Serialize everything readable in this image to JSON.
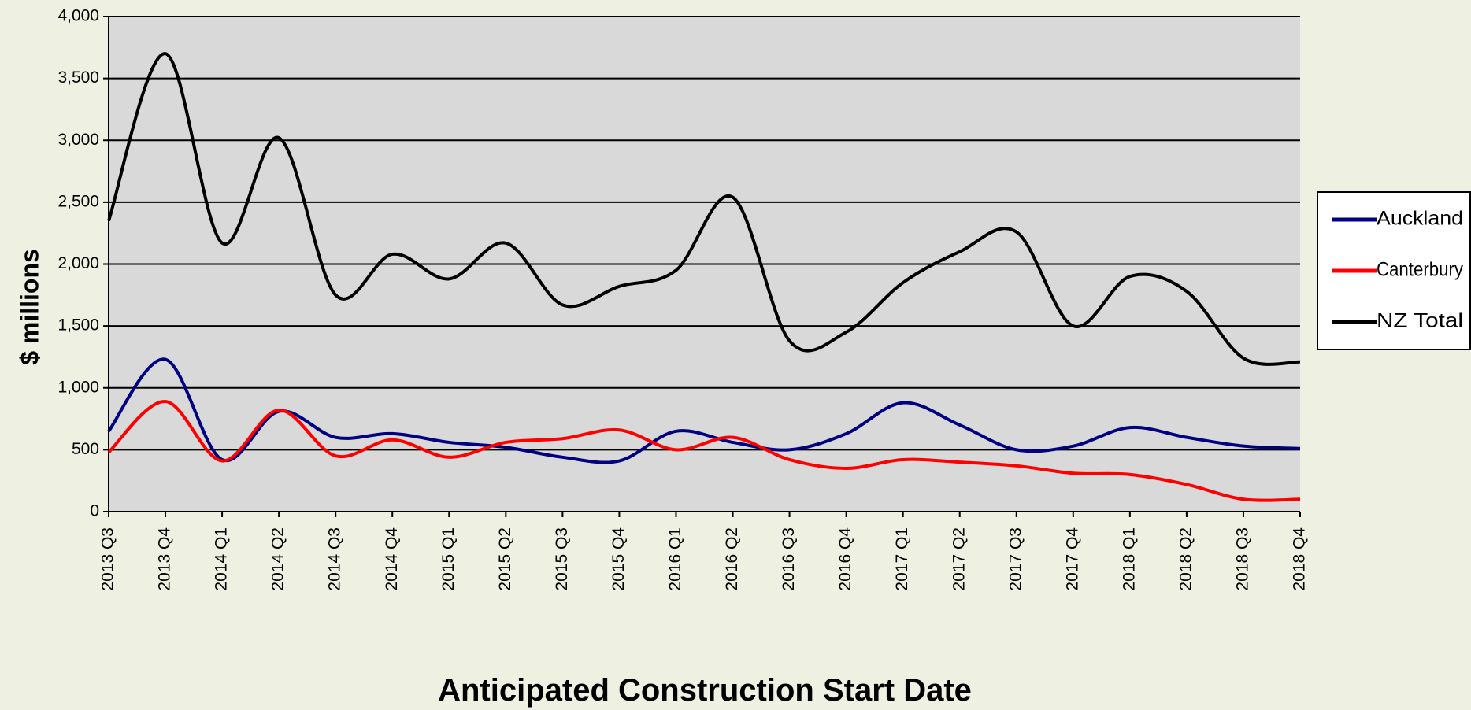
{
  "chart_data": {
    "type": "line",
    "x_label": "Anticipated Construction Start Date",
    "y_label": "$ millions",
    "categories": [
      "2013 Q3",
      "2013 Q4",
      "2014 Q1",
      "2014 Q2",
      "2014 Q3",
      "2014 Q4",
      "2015 Q1",
      "2015 Q2",
      "2015 Q3",
      "2015 Q4",
      "2016 Q1",
      "2016 Q2",
      "2016 Q3",
      "2016 Q4",
      "2017 Q1",
      "2017 Q2",
      "2017 Q3",
      "2017 Q4",
      "2018 Q1",
      "2018 Q2",
      "2018 Q3",
      "2018 Q4"
    ],
    "series": [
      {
        "name": "Auckland",
        "color": "#000080",
        "values": [
          650,
          1230,
          420,
          810,
          600,
          630,
          560,
          520,
          440,
          410,
          650,
          560,
          500,
          630,
          880,
          700,
          500,
          530,
          680,
          600,
          530,
          510
        ]
      },
      {
        "name": "Canterbury",
        "color": "#ff0000",
        "values": [
          480,
          890,
          410,
          820,
          450,
          580,
          440,
          560,
          590,
          660,
          500,
          600,
          420,
          350,
          420,
          400,
          370,
          310,
          300,
          220,
          100,
          100
        ]
      },
      {
        "name": "NZ Total",
        "color": "#000000",
        "values": [
          2350,
          3700,
          2170,
          3020,
          1750,
          2080,
          1880,
          2170,
          1670,
          1820,
          1950,
          2540,
          1380,
          1450,
          1850,
          2100,
          2260,
          1500,
          1900,
          1780,
          1240,
          1210
        ]
      }
    ],
    "ylim": [
      0,
      4000
    ],
    "yticks": [
      0,
      500,
      {
        "value": 1000,
        "label": "1,000"
      },
      {
        "value": 1500,
        "label": "1,500"
      },
      {
        "value": 2000,
        "label": "2,000"
      },
      {
        "value": 2500,
        "label": "2,500"
      },
      {
        "value": 3000,
        "label": "3,000"
      },
      {
        "value": 3500,
        "label": "3,500"
      },
      {
        "value": 4000,
        "label": "4,000"
      }
    ],
    "grid": true,
    "legend": "right"
  }
}
